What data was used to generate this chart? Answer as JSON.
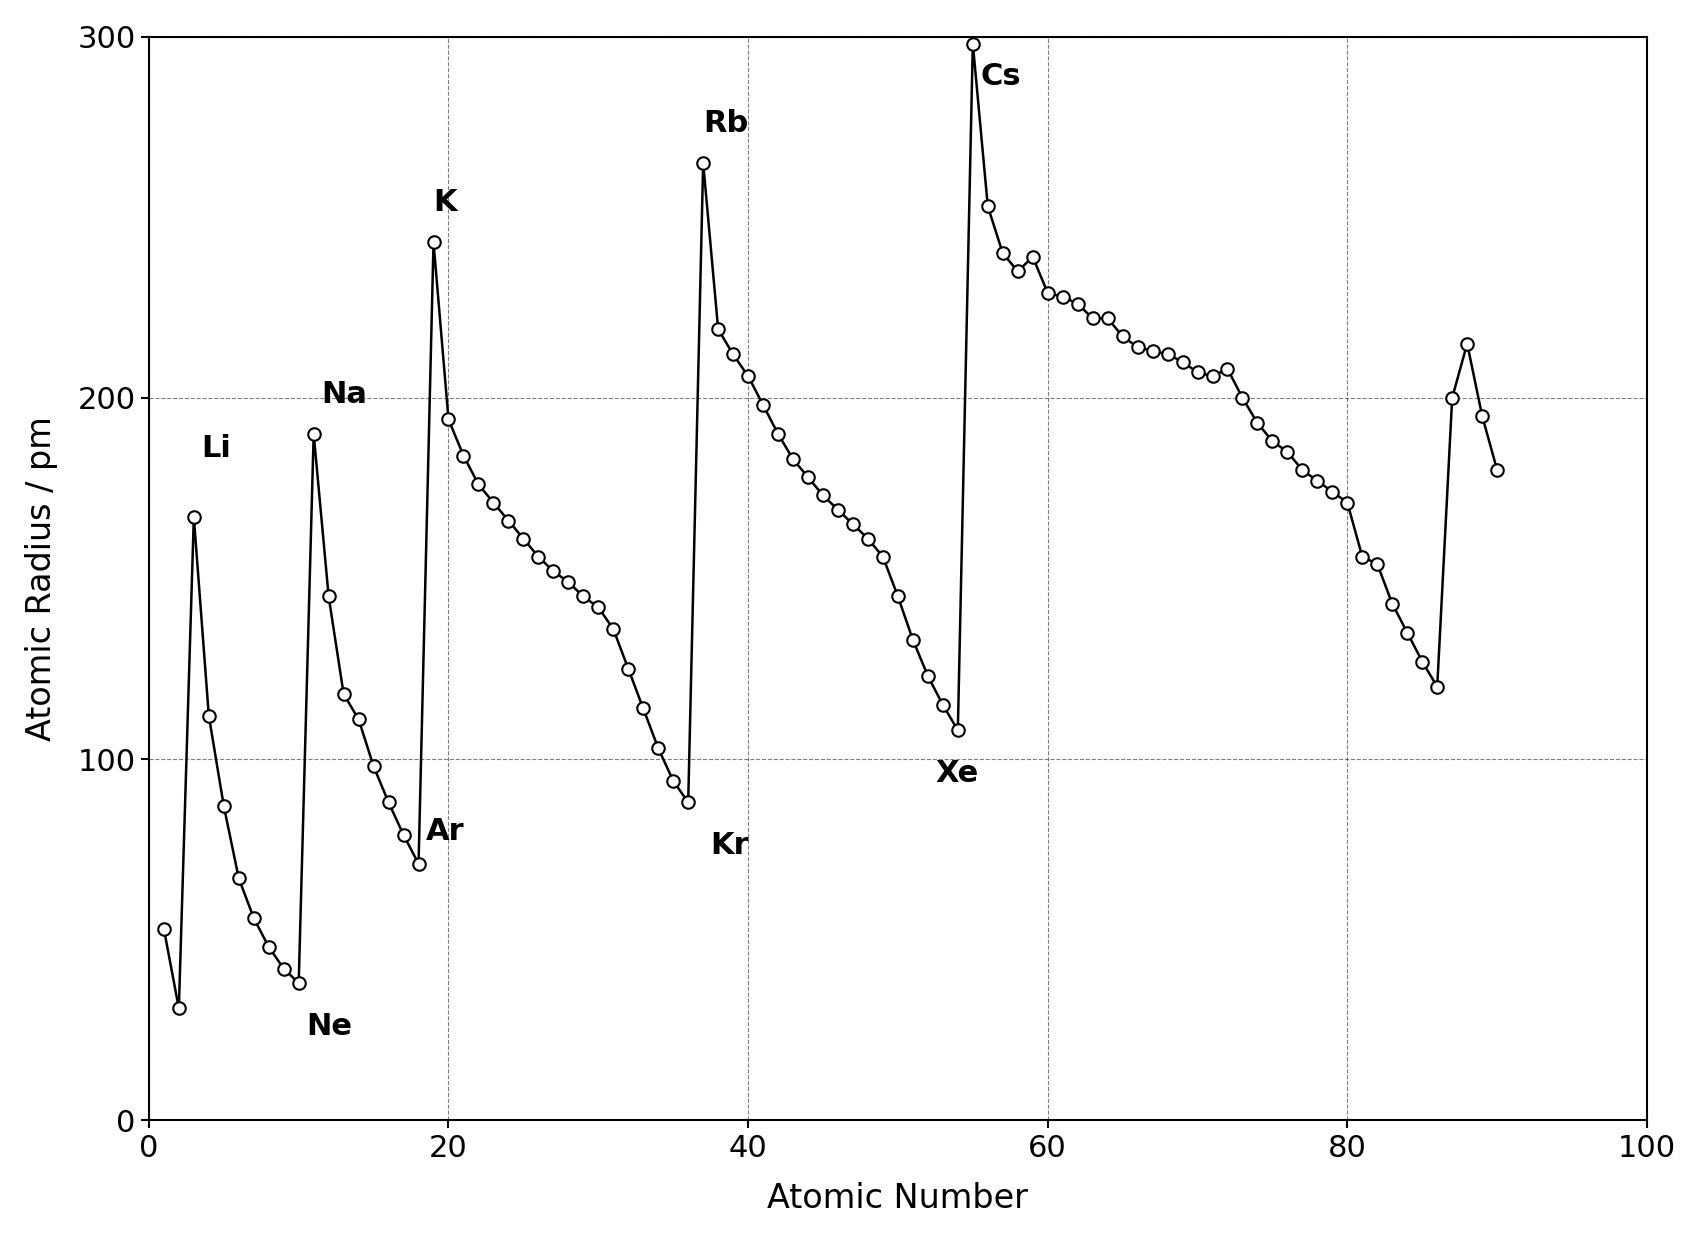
{
  "atomic_data": [
    [
      1,
      53
    ],
    [
      2,
      31
    ],
    [
      3,
      167
    ],
    [
      4,
      112
    ],
    [
      5,
      87
    ],
    [
      6,
      67
    ],
    [
      7,
      56
    ],
    [
      8,
      48
    ],
    [
      9,
      42
    ],
    [
      10,
      38
    ],
    [
      11,
      190
    ],
    [
      12,
      145
    ],
    [
      13,
      118
    ],
    [
      14,
      111
    ],
    [
      15,
      98
    ],
    [
      16,
      88
    ],
    [
      17,
      79
    ],
    [
      18,
      71
    ],
    [
      19,
      243
    ],
    [
      20,
      194
    ],
    [
      21,
      184
    ],
    [
      22,
      176
    ],
    [
      23,
      171
    ],
    [
      24,
      166
    ],
    [
      25,
      161
    ],
    [
      26,
      156
    ],
    [
      27,
      152
    ],
    [
      28,
      149
    ],
    [
      29,
      145
    ],
    [
      30,
      142
    ],
    [
      31,
      136
    ],
    [
      32,
      125
    ],
    [
      33,
      114
    ],
    [
      34,
      103
    ],
    [
      35,
      94
    ],
    [
      36,
      88
    ],
    [
      37,
      265
    ],
    [
      38,
      219
    ],
    [
      39,
      212
    ],
    [
      40,
      206
    ],
    [
      41,
      198
    ],
    [
      42,
      190
    ],
    [
      43,
      183
    ],
    [
      44,
      178
    ],
    [
      45,
      173
    ],
    [
      46,
      169
    ],
    [
      47,
      165
    ],
    [
      48,
      161
    ],
    [
      49,
      156
    ],
    [
      50,
      145
    ],
    [
      51,
      133
    ],
    [
      52,
      123
    ],
    [
      53,
      115
    ],
    [
      54,
      108
    ],
    [
      55,
      298
    ],
    [
      56,
      253
    ],
    [
      57,
      240
    ],
    [
      58,
      235
    ],
    [
      59,
      239
    ],
    [
      60,
      229
    ],
    [
      61,
      228
    ],
    [
      62,
      226
    ],
    [
      63,
      222
    ],
    [
      64,
      222
    ],
    [
      65,
      217
    ],
    [
      66,
      214
    ],
    [
      67,
      213
    ],
    [
      68,
      212
    ],
    [
      69,
      210
    ],
    [
      70,
      207
    ],
    [
      71,
      206
    ],
    [
      72,
      208
    ],
    [
      73,
      200
    ],
    [
      74,
      193
    ],
    [
      75,
      188
    ],
    [
      76,
      185
    ],
    [
      77,
      180
    ],
    [
      78,
      177
    ],
    [
      79,
      174
    ],
    [
      80,
      171
    ],
    [
      81,
      156
    ],
    [
      82,
      154
    ],
    [
      83,
      143
    ],
    [
      84,
      135
    ],
    [
      85,
      127
    ],
    [
      86,
      120
    ],
    [
      87,
      200
    ],
    [
      88,
      215
    ],
    [
      89,
      195
    ],
    [
      90,
      180
    ]
  ],
  "xlabel": "Atomic Number",
  "ylabel": "Atomic Radius / pm",
  "xlim": [
    0,
    100
  ],
  "ylim": [
    0,
    300
  ],
  "xticks": [
    0,
    20,
    40,
    60,
    80,
    100
  ],
  "yticks": [
    0,
    100,
    200,
    300
  ],
  "line_color": "#000000",
  "marker_facecolor": "#ffffff",
  "marker_edgecolor": "#000000",
  "marker_size": 9,
  "line_width": 1.8,
  "marker_linewidth": 1.5,
  "grid_color": "#000000",
  "grid_linestyle": "--",
  "grid_linewidth": 0.8,
  "grid_alpha": 0.5,
  "bg_color": "#ffffff",
  "font_size_labels": 24,
  "font_size_ticks": 22,
  "font_size_annotations": 22,
  "label_positions": {
    "3": [
      3.5,
      182,
      "Li"
    ],
    "10": [
      10.5,
      22,
      "Ne"
    ],
    "11": [
      11.5,
      197,
      "Na"
    ],
    "18": [
      18.5,
      76,
      "Ar"
    ],
    "19": [
      19.0,
      250,
      "K"
    ],
    "36": [
      37.5,
      72,
      "Kr"
    ],
    "37": [
      37.0,
      272,
      "Rb"
    ],
    "54": [
      52.5,
      92,
      "Xe"
    ],
    "55": [
      55.5,
      285,
      "Cs"
    ]
  }
}
